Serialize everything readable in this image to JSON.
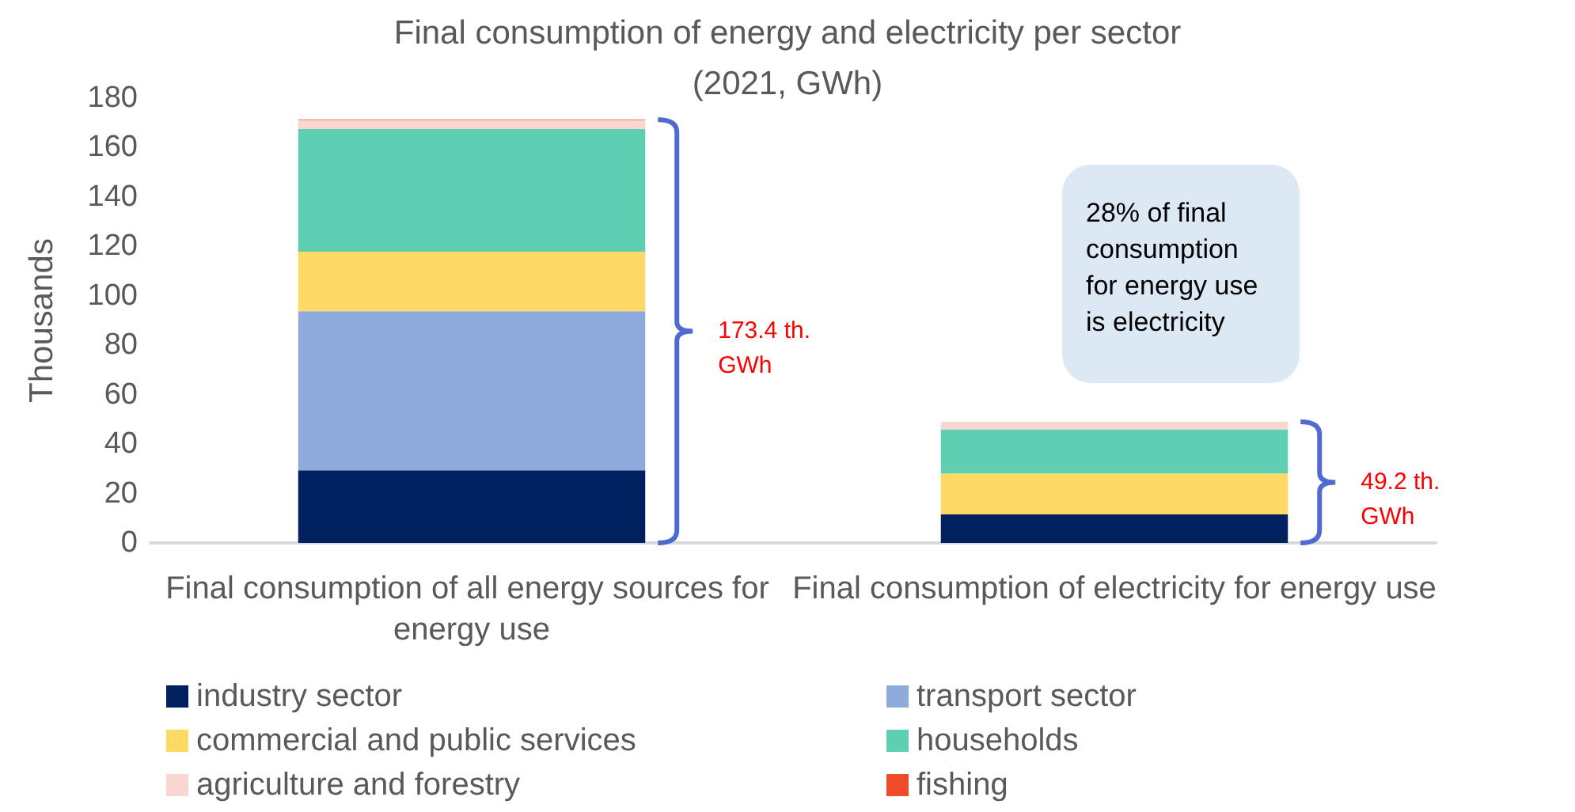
{
  "chart_data": {
    "type": "bar",
    "title": "Final consumption of energy and electricity per sector\n(2021, GWh)",
    "ylabel": "Thousands",
    "stacked": true,
    "categories": [
      "Final consumption of all energy sources for energy use",
      "Final consumption of electricity for energy use"
    ],
    "series": [
      {
        "name": "industry sector",
        "color": "#002060",
        "values": [
          29.4,
          11.5
        ]
      },
      {
        "name": "transport sector",
        "color": "#8faadc",
        "values": [
          64.4,
          null
        ]
      },
      {
        "name": "commercial and public services",
        "color": "#ffd966",
        "values": [
          24.1,
          16.6
        ]
      },
      {
        "name": "households",
        "color": "#5ecfb1",
        "values": [
          49.7,
          17.9
        ]
      },
      {
        "name": "agriculture and forestry",
        "color": "#fbd5cf",
        "values": [
          3.4,
          3.0
        ]
      },
      {
        "name": "fishing",
        "color": "#ee4b2b",
        "values": [
          0.3,
          null
        ]
      }
    ],
    "ylim": [
      0,
      180
    ],
    "yticks": [
      0,
      20,
      40,
      60,
      80,
      100,
      120,
      140,
      160,
      180
    ],
    "grid": false,
    "legend": "bottom",
    "annotations": [
      "173.4 th. GWh",
      "49.2 th. GWh",
      "28% of final consumption for energy use is electricity"
    ]
  }
}
